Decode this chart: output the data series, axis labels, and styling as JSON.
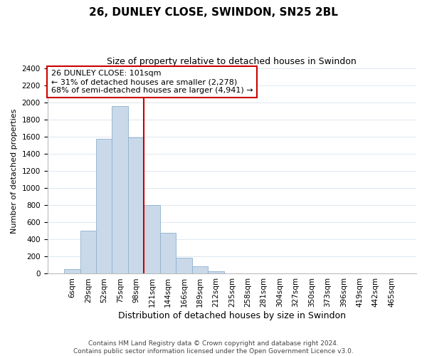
{
  "title": "26, DUNLEY CLOSE, SWINDON, SN25 2BL",
  "subtitle": "Size of property relative to detached houses in Swindon",
  "xlabel": "Distribution of detached houses by size in Swindon",
  "ylabel": "Number of detached properties",
  "bar_labels": [
    "6sqm",
    "29sqm",
    "52sqm",
    "75sqm",
    "98sqm",
    "121sqm",
    "144sqm",
    "166sqm",
    "189sqm",
    "212sqm",
    "235sqm",
    "258sqm",
    "281sqm",
    "304sqm",
    "327sqm",
    "350sqm",
    "373sqm",
    "396sqm",
    "419sqm",
    "442sqm",
    "465sqm"
  ],
  "bar_values": [
    55,
    500,
    1575,
    1960,
    1590,
    800,
    475,
    185,
    90,
    30,
    0,
    0,
    0,
    0,
    0,
    0,
    0,
    0,
    0,
    0,
    0
  ],
  "bar_color": "#c9d9ea",
  "bar_edge_color": "#8fb0cc",
  "vline_color": "#cc0000",
  "annotation_text": "26 DUNLEY CLOSE: 101sqm\n← 31% of detached houses are smaller (2,278)\n68% of semi-detached houses are larger (4,941) →",
  "annotation_box_color": "#ffffff",
  "annotation_box_edge": "#cc0000",
  "ylim": [
    0,
    2400
  ],
  "yticks": [
    0,
    200,
    400,
    600,
    800,
    1000,
    1200,
    1400,
    1600,
    1800,
    2000,
    2200,
    2400
  ],
  "footer_line1": "Contains HM Land Registry data © Crown copyright and database right 2024.",
  "footer_line2": "Contains public sector information licensed under the Open Government Licence v3.0.",
  "background_color": "#ffffff",
  "grid_color": "#dde8f0",
  "title_fontsize": 11,
  "subtitle_fontsize": 9,
  "ylabel_fontsize": 8,
  "xlabel_fontsize": 9,
  "tick_fontsize": 7.5,
  "footer_fontsize": 6.5,
  "annotation_fontsize": 8
}
